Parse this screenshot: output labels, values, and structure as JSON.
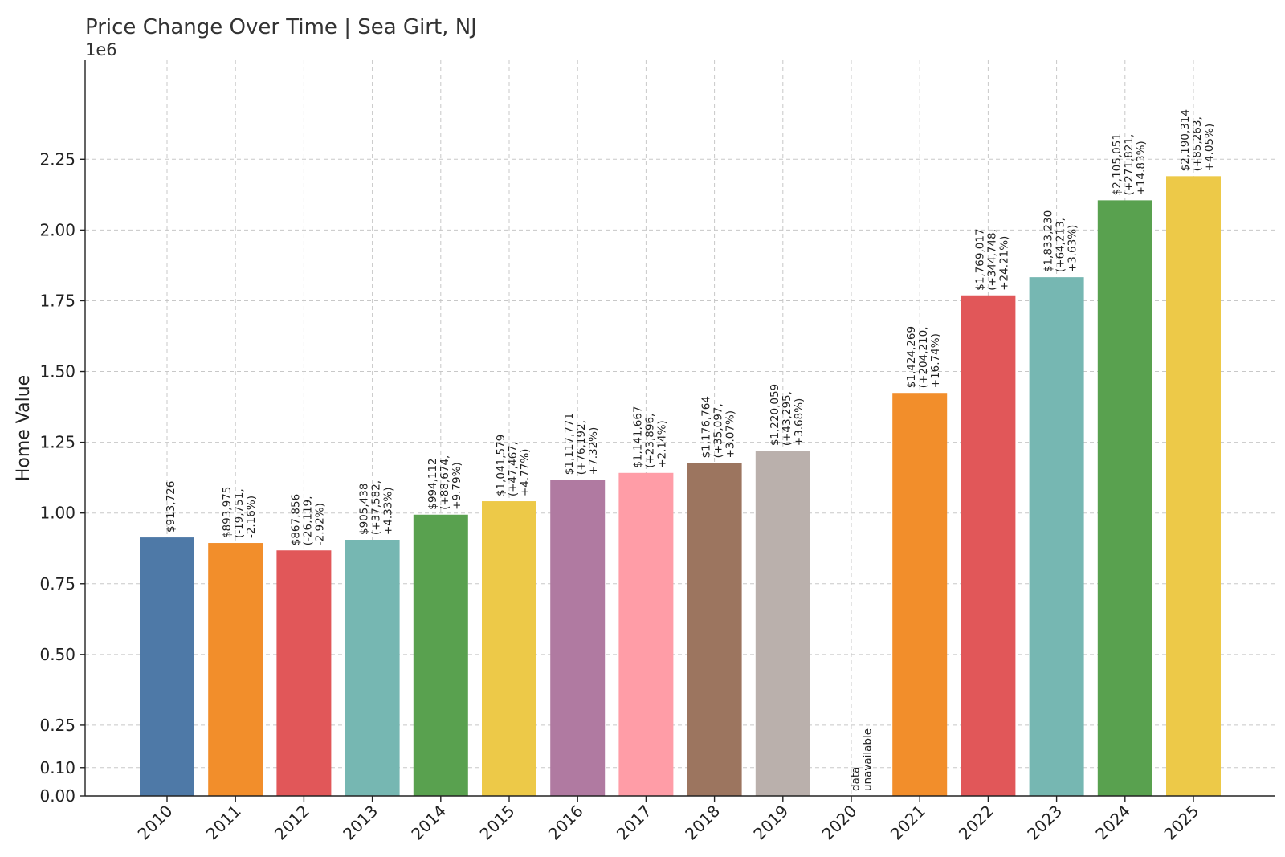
{
  "chart_data": {
    "type": "bar",
    "title": "Price Change Over Time | Sea Girt, NJ",
    "ylabel": "Home Value",
    "xlabel": "",
    "y_offset_label": "1e6",
    "ylim": [
      0,
      2.6
    ],
    "yticks": [
      {
        "value": 0.0,
        "label": "0.00"
      },
      {
        "value": 0.1,
        "label": "0.10"
      },
      {
        "value": 0.25,
        "label": "0.25"
      },
      {
        "value": 0.5,
        "label": "0.50"
      },
      {
        "value": 0.75,
        "label": "0.75"
      },
      {
        "value": 1.0,
        "label": "1.00"
      },
      {
        "value": 1.25,
        "label": "1.25"
      },
      {
        "value": 1.5,
        "label": "1.50"
      },
      {
        "value": 1.75,
        "label": "1.75"
      },
      {
        "value": 2.0,
        "label": "2.00"
      },
      {
        "value": 2.25,
        "label": "2.25"
      }
    ],
    "grid": true,
    "categories": [
      "2010",
      "2011",
      "2012",
      "2013",
      "2014",
      "2015",
      "2016",
      "2017",
      "2018",
      "2019",
      "2020",
      "2021",
      "2022",
      "2023",
      "2024",
      "2025"
    ],
    "values": [
      913726,
      893975,
      867856,
      905438,
      994112,
      1041579,
      1117771,
      1141667,
      1176764,
      1220059,
      null,
      1424269,
      1769017,
      1833230,
      2105051,
      2190314
    ],
    "colors": [
      "#4e79a7",
      "#f28e2b",
      "#e15759",
      "#76b7b2",
      "#59a14f",
      "#edc948",
      "#b07aa1",
      "#ff9da7",
      "#9c755f",
      "#bab0ac",
      "#4e79a7",
      "#f28e2b",
      "#e15759",
      "#76b7b2",
      "#59a14f",
      "#edc948"
    ],
    "bar_labels": [
      [
        "$913,726"
      ],
      [
        "$893,975",
        "(-19,751,",
        "-2.16%)"
      ],
      [
        "$867,856",
        "(-26,119,",
        "-2.92%)"
      ],
      [
        "$905,438",
        "(+37,582,",
        "+4.33%)"
      ],
      [
        "$994,112",
        "(+88,674,",
        "+9.79%)"
      ],
      [
        "$1,041,579",
        "(+47,467,",
        "+4.77%)"
      ],
      [
        "$1,117,771",
        "(+76,192,",
        "+7.32%)"
      ],
      [
        "$1,141,667",
        "(+23,896,",
        "+2.14%)"
      ],
      [
        "$1,176,764",
        "(+35,097,",
        "+3.07%)"
      ],
      [
        "$1,220,059",
        "(+43,295,",
        "+3.68%)"
      ],
      [
        "data",
        "unavailable"
      ],
      [
        "$1,424,269",
        "(+204,210,",
        "+16.74%)"
      ],
      [
        "$1,769,017",
        "(+344,748,",
        "+24.21%)"
      ],
      [
        "$1,833,230",
        "(+64,213,",
        "+3.63%)"
      ],
      [
        "$2,105,051",
        "(+271,821,",
        "+14.83%)"
      ],
      [
        "$2,190,314",
        "(+85,263,",
        "+4.05%)"
      ]
    ]
  }
}
